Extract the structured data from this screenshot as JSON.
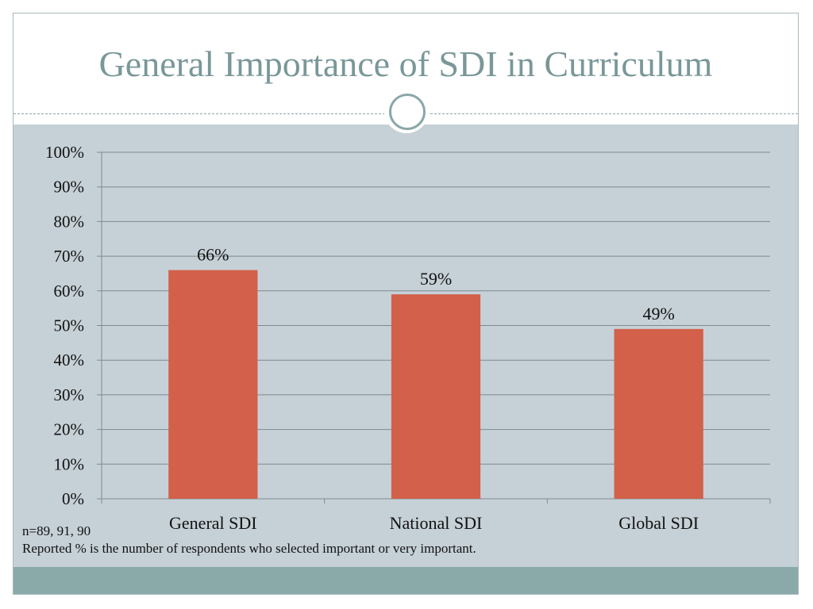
{
  "slide": {
    "title": "General Importance of SDI in Curriculum",
    "notes": [
      "n=89, 91, 90",
      "Reported % is the number of respondents who selected important or very important."
    ]
  },
  "colors": {
    "title": "#7a9799",
    "bar": "#d2604a",
    "plot_background": "#c6d1d7",
    "gridline": "#7d8a90",
    "footer_band": "#8aaaa9"
  },
  "chart_data": {
    "type": "bar",
    "title": "",
    "xlabel": "",
    "ylabel": "",
    "categories": [
      "General SDI",
      "National SDI",
      "Global SDI"
    ],
    "values": [
      66,
      59,
      49
    ],
    "data_labels": [
      "66%",
      "59%",
      "49%"
    ],
    "ylim": [
      0,
      100
    ],
    "yticks": [
      "0%",
      "10%",
      "20%",
      "30%",
      "40%",
      "50%",
      "60%",
      "70%",
      "80%",
      "90%",
      "100%"
    ],
    "grid": true,
    "legend": "none"
  }
}
